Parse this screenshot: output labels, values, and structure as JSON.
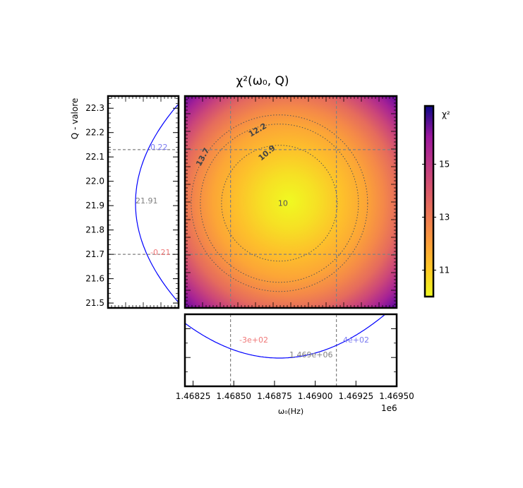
{
  "figure": {
    "title": "χ²(ω₀, Q)"
  },
  "chart_data": [
    {
      "panel": "heatmap",
      "type": "heatmap",
      "x_range": [
        1468200,
        1469500
      ],
      "y_range": [
        21.48,
        22.35
      ],
      "center": {
        "x": 1468780,
        "y": 21.91
      },
      "min_value": 10.0,
      "contours": [
        {
          "value": 10.9,
          "label": "10.9"
        },
        {
          "value": 12.2,
          "label": "12.2"
        },
        {
          "value": 13.7,
          "label": "13.7"
        }
      ],
      "center_label": "10",
      "colormap": "plasma_r",
      "x_guides": [
        1468480,
        1469130
      ],
      "y_guides": [
        21.7,
        22.13
      ]
    },
    {
      "panel": "q-profile",
      "type": "line",
      "ylabel": "Q - valore",
      "y_ticks": [
        "21.5",
        "21.6",
        "21.7",
        "21.8",
        "21.9",
        "22.0",
        "22.1",
        "22.2",
        "22.3"
      ],
      "y_range": [
        21.48,
        22.35
      ],
      "best_label": "21.91",
      "upper_label": "0.22",
      "lower_label": "-0.21",
      "y_guides": [
        21.7,
        22.13
      ]
    },
    {
      "panel": "omega-profile",
      "type": "line",
      "xlabel": "ω₀(Hz)",
      "x_ticks": [
        "1.46825",
        "1.46850",
        "1.46875",
        "1.46900",
        "1.46925",
        "1.46950"
      ],
      "x_tick_values": [
        1468250,
        1468500,
        1468750,
        1469000,
        1469250,
        1469500
      ],
      "x_range": [
        1468200,
        1469500
      ],
      "offset_label": "1e6",
      "best_label": "1.469e+06",
      "lower_label": "-3e+02",
      "upper_label": "4e+02",
      "x_guides": [
        1468480,
        1469130
      ]
    },
    {
      "panel": "colorbar",
      "type": "heatmap",
      "label": "χ²",
      "ticks": [
        "11",
        "13",
        "15"
      ],
      "tick_values": [
        11,
        13,
        15
      ],
      "range": [
        10.0,
        17.2
      ]
    }
  ],
  "colors": {
    "curve": "#0000ff",
    "upper_text": "#7a7af0",
    "lower_text": "#f07878",
    "guide": "#808080",
    "contour": "#555555"
  }
}
